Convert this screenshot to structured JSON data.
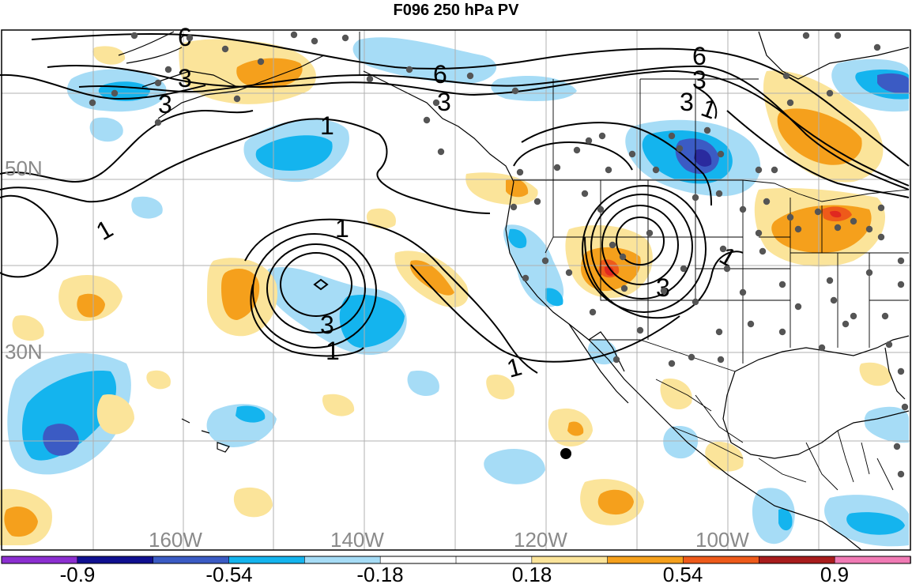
{
  "title": "F096 250 hPa PV",
  "map": {
    "lat_labels": [
      "50N",
      "30N"
    ],
    "lon_labels": [
      "160W",
      "140W",
      "120W",
      "100W"
    ],
    "contour_labels": [
      "6",
      "3",
      "3",
      "6",
      "3",
      "6",
      "3",
      "1",
      "1",
      "1",
      "1",
      "3",
      "1",
      "1",
      "1",
      "3",
      "3"
    ],
    "shading_colors": {
      "light_blue": "#a6dcf6",
      "blue": "#14b4ee",
      "dark_blue": "#3b5bc4",
      "indigo": "#2a2a9e",
      "light_orange": "#fbe49a",
      "orange": "#f5a01c",
      "red_orange": "#ee5a1a",
      "red": "#e02820"
    },
    "station_color": "#555555",
    "marker_color": "#000000"
  },
  "colorbar": {
    "colors": [
      "#8c2fd0",
      "#101090",
      "#3b5bc4",
      "#14b4ee",
      "#a6dcf6",
      "#ffffff",
      "#ffffff",
      "#fbe49a",
      "#f5a01c",
      "#ee5a1a",
      "#a81c1c",
      "#f07ab4"
    ],
    "tick_labels": [
      "-0.9",
      "-0.54",
      "-0.18",
      "0.18",
      "0.54",
      "0.9"
    ]
  }
}
